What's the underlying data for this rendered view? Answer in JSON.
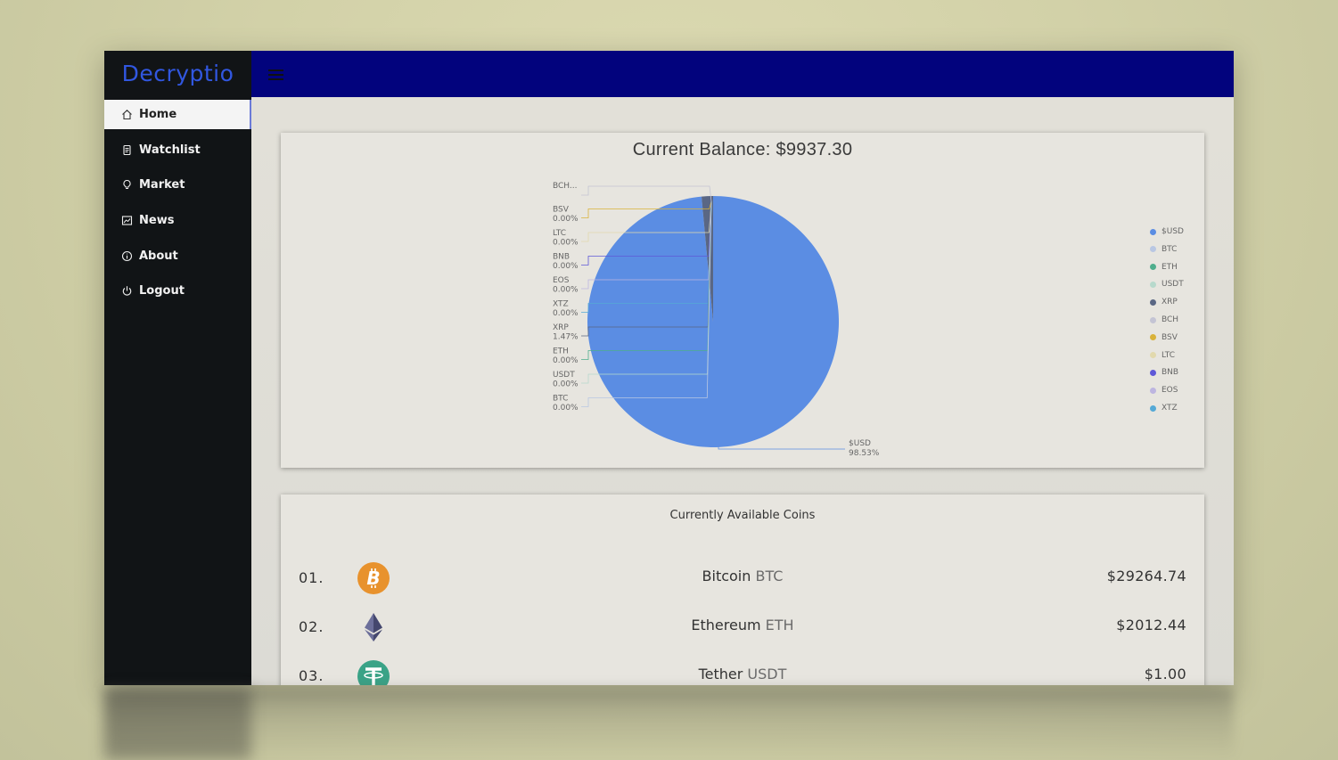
{
  "app": {
    "brand": "Decryptio"
  },
  "sidebar": {
    "items": [
      {
        "label": "Home",
        "icon": "home-icon",
        "active": true
      },
      {
        "label": "Watchlist",
        "icon": "document-icon"
      },
      {
        "label": "Market",
        "icon": "bulb-icon"
      },
      {
        "label": "News",
        "icon": "chart-icon"
      },
      {
        "label": "About",
        "icon": "info-icon"
      },
      {
        "label": "Logout",
        "icon": "power-icon"
      }
    ]
  },
  "balance": {
    "label": "Current Balance: $9937.30"
  },
  "chart_data": {
    "type": "pie",
    "title": "Current Balance: $9937.30",
    "legend_position": "right",
    "labels": [
      "$USD",
      "BTC",
      "ETH",
      "USDT",
      "XRP",
      "BCH",
      "BSV",
      "LTC",
      "BNB",
      "EOS",
      "XTZ"
    ],
    "values": [
      98.53,
      0.0,
      0.0,
      0.0,
      1.47,
      0.0,
      0.0,
      0.0,
      0.0,
      0.0,
      0.0
    ],
    "colors": [
      "#5b8de3",
      "#b9c7e3",
      "#4fae8d",
      "#b7d9cc",
      "#5a6784",
      "#c4c4d4",
      "#d9b23a",
      "#e2d9ad",
      "#5f58d8",
      "#bdb5e0",
      "#55a9d6"
    ],
    "slice_labels": [
      {
        "name": "BCH",
        "text": "BCH..."
      },
      {
        "name": "BSV",
        "text": "BSV",
        "pct": "0.00%"
      },
      {
        "name": "LTC",
        "text": "LTC",
        "pct": "0.00%"
      },
      {
        "name": "BNB",
        "text": "BNB",
        "pct": "0.00%"
      },
      {
        "name": "EOS",
        "text": "EOS",
        "pct": "0.00%"
      },
      {
        "name": "XTZ",
        "text": "XTZ",
        "pct": "0.00%"
      },
      {
        "name": "XRP",
        "text": "XRP",
        "pct": "1.47%"
      },
      {
        "name": "ETH",
        "text": "ETH",
        "pct": "0.00%"
      },
      {
        "name": "USDT",
        "text": "USDT",
        "pct": "0.00%"
      },
      {
        "name": "BTC",
        "text": "BTC",
        "pct": "0.00%"
      },
      {
        "name": "$USD",
        "text": "$USD",
        "pct": "98.53%"
      }
    ]
  },
  "coins": {
    "title": "Currently Available Coins",
    "rows": [
      {
        "rank": "01.",
        "name": "Bitcoin",
        "symbol": "BTC",
        "price": "$29264.74",
        "icon": "bitcoin-icon"
      },
      {
        "rank": "02.",
        "name": "Ethereum",
        "symbol": "ETH",
        "price": "$2012.44",
        "icon": "ethereum-icon"
      },
      {
        "rank": "03.",
        "name": "Tether",
        "symbol": "USDT",
        "price": "$1.00",
        "icon": "tether-icon"
      }
    ]
  }
}
